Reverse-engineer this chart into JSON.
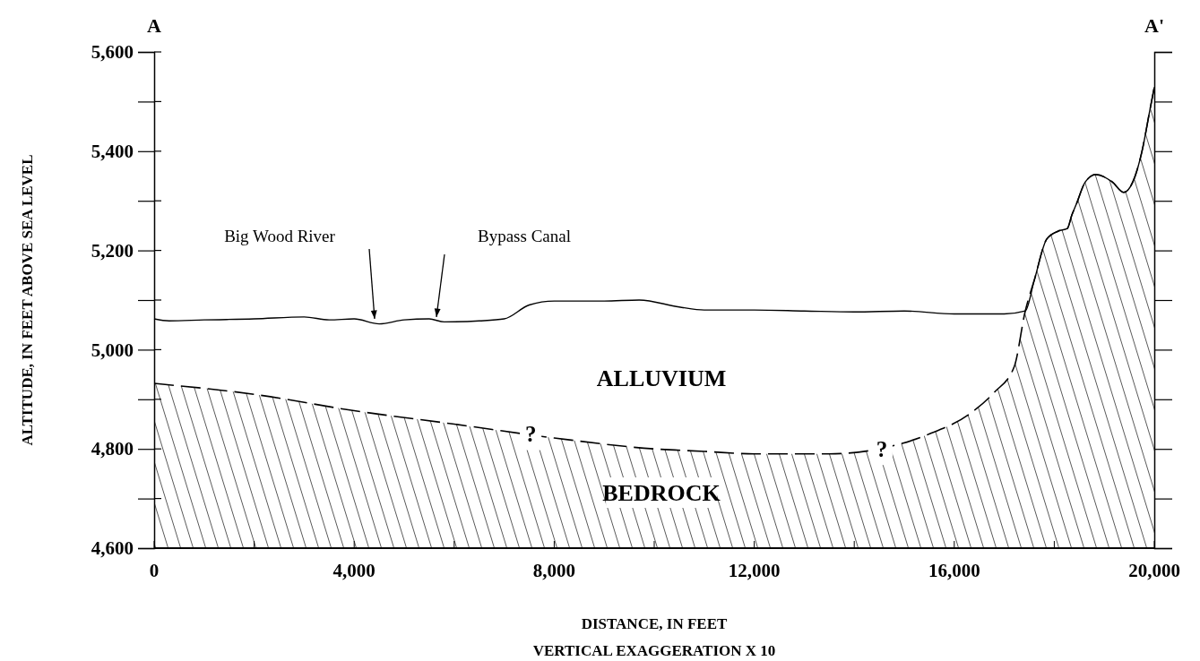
{
  "chart_data": {
    "type": "line",
    "xlabel": "DISTANCE, IN FEET",
    "ylabel": "ALTITUDE, IN FEET ABOVE SEA LEVEL",
    "xlim": [
      0,
      20000
    ],
    "ylim": [
      4600,
      5600
    ],
    "xticks": [
      0,
      {
        "value": 2000,
        "label": null
      },
      {
        "value": 4000,
        "label": "4,000"
      },
      {
        "value": 6000,
        "label": null
      },
      {
        "value": 8000,
        "label": "8,000"
      },
      {
        "value": 10000,
        "label": null
      },
      {
        "value": 12000,
        "label": "12,000"
      },
      {
        "value": 14000,
        "label": null
      },
      {
        "value": 16000,
        "label": "16,000"
      },
      {
        "value": 18000,
        "label": null
      },
      {
        "value": 20000,
        "label": "20,000"
      }
    ],
    "yticks": [
      {
        "value": 4600,
        "label": "4,600"
      },
      {
        "value": 4700,
        "label": null
      },
      {
        "value": 4800,
        "label": "4,800"
      },
      {
        "value": 4900,
        "label": null
      },
      {
        "value": 5000,
        "label": "5,000"
      },
      {
        "value": 5100,
        "label": null
      },
      {
        "value": 5200,
        "label": "5,200"
      },
      {
        "value": 5300,
        "label": null
      },
      {
        "value": 5400,
        "label": "5,400"
      },
      {
        "value": 5500,
        "label": null
      },
      {
        "value": 5600,
        "label": "5,600"
      }
    ],
    "grid": false,
    "marker": "none",
    "series": [
      {
        "type": "area",
        "color": "#000000",
        "line_style": "dashed",
        "x": [
          0,
          2000,
          4000,
          6000,
          8000,
          10000,
          11000,
          12000,
          13500,
          14500,
          15500,
          16300,
          16800,
          17200,
          17420,
          17600,
          17850,
          18080,
          18260,
          18350,
          18440,
          18620,
          18830,
          19160,
          19390,
          19570,
          19750,
          19910,
          20000
        ],
        "values": [
          4932,
          4910,
          4877,
          4850,
          4822,
          4800,
          4795,
          4790,
          4790,
          4800,
          4830,
          4870,
          4914,
          4966,
          5078,
          5140,
          5223,
          5239,
          5244,
          5271,
          5293,
          5338,
          5353,
          5338,
          5317,
          5338,
          5398,
          5482,
          5529
        ]
      },
      {
        "color": "#000000",
        "line_style": "solid",
        "x": [
          0,
          300,
          1000,
          2000,
          3000,
          3500,
          4000,
          4500,
          5000,
          5500,
          5800,
          6500,
          7000,
          7500,
          8000,
          9000,
          9700,
          10500,
          11000,
          12000,
          13000,
          14000,
          15000,
          16000,
          17000,
          17420,
          17600,
          17850,
          18080,
          18260,
          18350,
          18440,
          18620,
          18830,
          19160,
          19390,
          19570,
          19750,
          19910,
          20000
        ],
        "values": [
          5062,
          5058,
          5060,
          5062,
          5066,
          5060,
          5062,
          5052,
          5060,
          5062,
          5056,
          5058,
          5062,
          5090,
          5098,
          5098,
          5100,
          5086,
          5080,
          5080,
          5078,
          5076,
          5078,
          5072,
          5072,
          5078,
          5140,
          5223,
          5239,
          5244,
          5271,
          5293,
          5338,
          5353,
          5338,
          5317,
          5338,
          5398,
          5482,
          5529
        ]
      }
    ],
    "annotations": [
      "A",
      "A'",
      "VERTICAL EXAGGERATION  X  10",
      "Big Wood River",
      "Bypass Canal",
      "ALLUVIUM",
      "BEDROCK",
      {
        "text": "?",
        "x": 7530,
        "y": 4830
      },
      {
        "text": "?",
        "x": 14550,
        "y": 4800
      }
    ]
  }
}
